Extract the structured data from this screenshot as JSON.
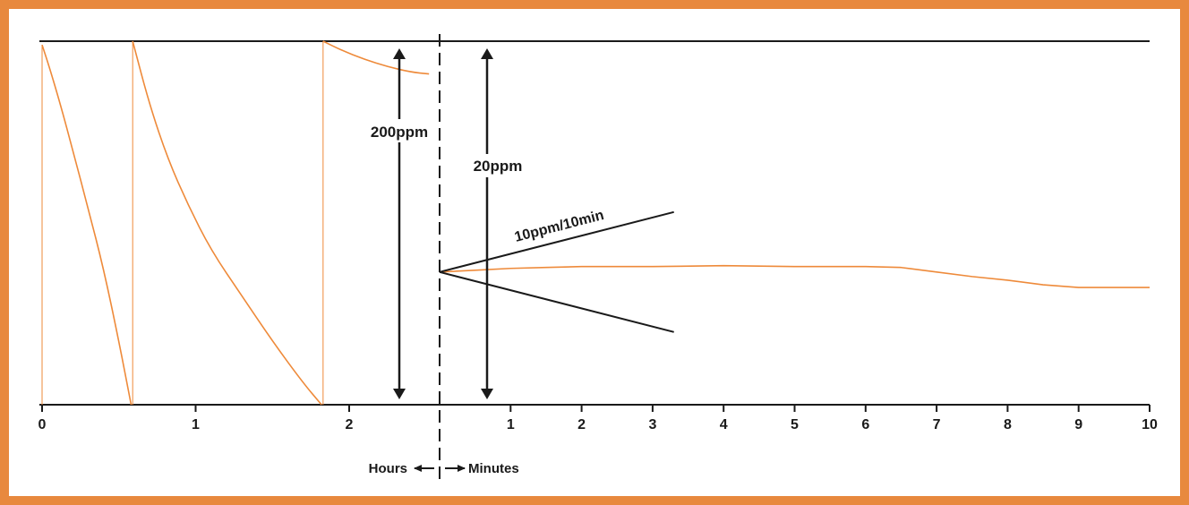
{
  "colors": {
    "frame": "#e8893e",
    "trace": "#ee8a3a",
    "ink": "#1a1a1a",
    "background": "#ffffff"
  },
  "chart_data": {
    "type": "line",
    "title": "",
    "xlabel_left": "Hours",
    "xlabel_right": "Minutes",
    "grid": false,
    "legend": "none",
    "hours_axis": {
      "range": [
        0,
        2.6
      ],
      "ticks": [
        {
          "value": 0,
          "label": "0"
        },
        {
          "value": 1,
          "label": "1"
        },
        {
          "value": 2,
          "label": "2"
        }
      ]
    },
    "minutes_axis": {
      "range": [
        0,
        10
      ],
      "ticks": [
        {
          "value": 1,
          "label": "1"
        },
        {
          "value": 2,
          "label": "2"
        },
        {
          "value": 3,
          "label": "3"
        },
        {
          "value": 4,
          "label": "4"
        },
        {
          "value": 5,
          "label": "5"
        },
        {
          "value": 6,
          "label": "6"
        },
        {
          "value": 7,
          "label": "7"
        },
        {
          "value": 8,
          "label": "8"
        },
        {
          "value": 9,
          "label": "9"
        },
        {
          "value": 10,
          "label": "10"
        }
      ]
    },
    "scale_annotations": [
      {
        "label": "200ppm",
        "side": "hours"
      },
      {
        "label": "20ppm",
        "side": "minutes"
      }
    ],
    "drift_annotation": {
      "label": "10ppm/10min",
      "slope_ppm_per_10min": 10,
      "extent_minutes": 3.3
    },
    "series_hours": [
      {
        "segment": 1,
        "span_ppm": 200,
        "points": [
          [
            0.0,
            198
          ],
          [
            0.05,
            185
          ],
          [
            0.12,
            165
          ],
          [
            0.2,
            140
          ],
          [
            0.3,
            108
          ],
          [
            0.4,
            75
          ],
          [
            0.5,
            35
          ],
          [
            0.58,
            0
          ]
        ]
      },
      {
        "segment": 2,
        "span_ppm": 200,
        "points": [
          [
            0.59,
            200
          ],
          [
            0.7,
            165
          ],
          [
            0.82,
            135
          ],
          [
            0.95,
            110
          ],
          [
            1.1,
            85
          ],
          [
            1.3,
            60
          ],
          [
            1.5,
            35
          ],
          [
            1.7,
            12
          ],
          [
            1.82,
            0
          ]
        ]
      },
      {
        "segment": 3,
        "span_ppm": 200,
        "points": [
          [
            1.83,
            200
          ],
          [
            1.95,
            195
          ],
          [
            2.1,
            190
          ],
          [
            2.25,
            186
          ],
          [
            2.4,
            183
          ],
          [
            2.52,
            182
          ]
        ]
      }
    ],
    "series_minutes": [
      {
        "span_ppm": 20,
        "points": [
          [
            0.0,
            7.3
          ],
          [
            0.5,
            7.4
          ],
          [
            1,
            7.5
          ],
          [
            1.5,
            7.55
          ],
          [
            2,
            7.6
          ],
          [
            3,
            7.6
          ],
          [
            4,
            7.65
          ],
          [
            5,
            7.6
          ],
          [
            6,
            7.6
          ],
          [
            6.5,
            7.55
          ],
          [
            7,
            7.3
          ],
          [
            7.5,
            7.05
          ],
          [
            8,
            6.85
          ],
          [
            8.5,
            6.6
          ],
          [
            9,
            6.45
          ],
          [
            9.5,
            6.45
          ],
          [
            10,
            6.45
          ]
        ]
      }
    ],
    "y_range_hours_ppm": [
      0,
      200
    ],
    "y_range_minutes_ppm": [
      0,
      20
    ],
    "minutes_reference_ppm": 7.3
  }
}
